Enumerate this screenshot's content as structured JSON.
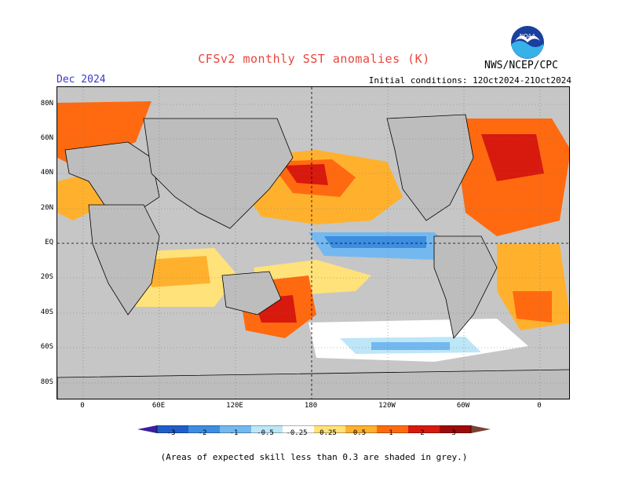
{
  "map": {
    "title": "CFSv2 monthly SST anomalies (K)",
    "period": "Dec 2024",
    "initial_conditions": "Initial conditions: 12Oct2024-21Oct2024",
    "agency": "NWS/NCEP/CPC",
    "logo_text": "NOAA",
    "lat_labels": [
      "80N",
      "60N",
      "40N",
      "20N",
      "EQ",
      "20S",
      "40S",
      "60S",
      "80S"
    ],
    "lon_labels": [
      "0",
      "60E",
      "120E",
      "180",
      "120W",
      "60W",
      "0"
    ],
    "colorbar_labels": [
      "-3",
      "-2",
      "-1",
      "-0.5",
      "-0.25",
      "0.25",
      "0.5",
      "1",
      "2",
      "3"
    ],
    "colorbar_colors": [
      "#3a1f9e",
      "#1f5ec8",
      "#3d8de0",
      "#74b8f0",
      "#bde6f7",
      "#ffffff",
      "#ffe27a",
      "#ffb12e",
      "#ff6a10",
      "#d8190e",
      "#9e0a0a",
      "#7a4236"
    ],
    "footnote": "(Areas of expected skill less than 0.3 are shaded in grey.)",
    "colors": {
      "land": "#bdbdbd",
      "grey_skill": "#c6c6c6",
      "title": "#e8453c",
      "period": "#3a3acc"
    }
  }
}
